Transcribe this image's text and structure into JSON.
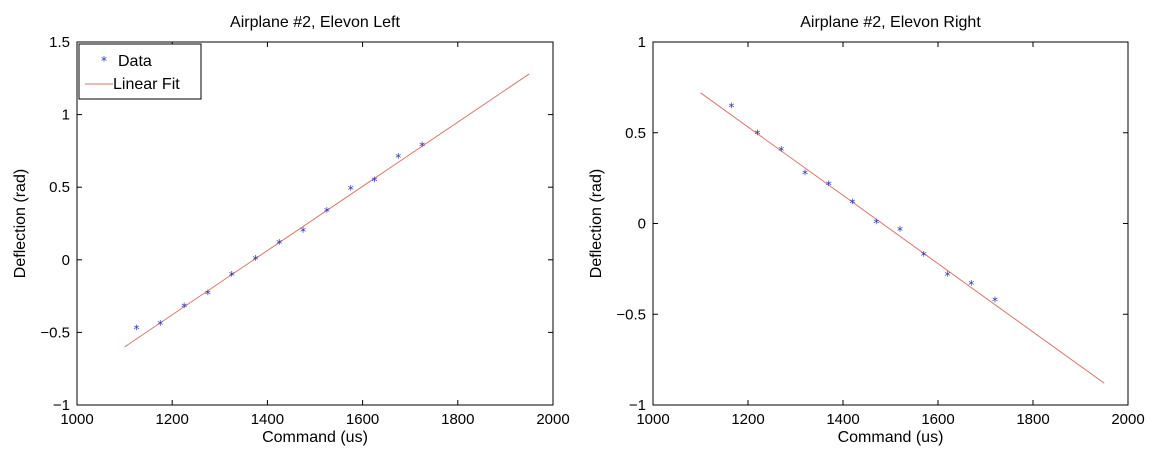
{
  "chart_data": [
    {
      "type": "scatter",
      "title": "Airplane #2, Elevon Left",
      "xlabel": "Command (us)",
      "ylabel": "Deflection (rad)",
      "xlim": [
        1000,
        2000
      ],
      "ylim": [
        -1,
        1.5
      ],
      "x_ticks": [
        "1000",
        "1200",
        "1400",
        "1600",
        "1800",
        "2000"
      ],
      "y_ticks": [
        "−1",
        "−0.5",
        "0",
        "0.5",
        "1",
        "1.5"
      ],
      "x_tick_values": [
        1000,
        1200,
        1400,
        1600,
        1800,
        2000
      ],
      "y_tick_values": [
        -1,
        -0.5,
        0,
        0.5,
        1,
        1.5
      ],
      "legend": {
        "placement": "top-left",
        "entries": [
          "Data",
          "Linear Fit"
        ]
      },
      "series": [
        {
          "name": "Data",
          "marker": "*",
          "color": "#2a35b8",
          "x": [
            1125,
            1175,
            1225,
            1275,
            1325,
            1375,
            1425,
            1475,
            1525,
            1575,
            1625,
            1675,
            1725
          ],
          "y": [
            -0.48,
            -0.45,
            -0.33,
            -0.24,
            -0.11,
            0.0,
            0.11,
            0.19,
            0.33,
            0.48,
            0.54,
            0.7,
            0.78
          ]
        },
        {
          "name": "Linear Fit",
          "color": "#d9756b",
          "x": [
            1100,
            1950
          ],
          "y": [
            -0.6,
            1.28
          ]
        }
      ]
    },
    {
      "type": "scatter",
      "title": "Airplane #2, Elevon Right",
      "xlabel": "Command (us)",
      "ylabel": "Deflection (rad)",
      "xlim": [
        1000,
        2000
      ],
      "ylim": [
        -1,
        1
      ],
      "x_ticks": [
        "1000",
        "1200",
        "1400",
        "1600",
        "1800",
        "2000"
      ],
      "y_ticks": [
        "−1",
        "−0.5",
        "0",
        "0.5",
        "1"
      ],
      "x_tick_values": [
        1000,
        1200,
        1400,
        1600,
        1800,
        2000
      ],
      "y_tick_values": [
        -1,
        -0.5,
        0,
        0.5,
        1
      ],
      "series": [
        {
          "marker": "*",
          "color": "#2a35b8",
          "x": [
            1165,
            1220,
            1270,
            1320,
            1370,
            1420,
            1470,
            1520,
            1570,
            1620,
            1670,
            1720
          ],
          "y": [
            0.64,
            0.49,
            0.4,
            0.27,
            0.21,
            0.11,
            0.0,
            -0.04,
            -0.18,
            -0.29,
            -0.34,
            -0.43
          ]
        },
        {
          "color": "#d9756b",
          "x": [
            1100,
            1950
          ],
          "y": [
            0.72,
            -0.88
          ]
        }
      ]
    }
  ]
}
